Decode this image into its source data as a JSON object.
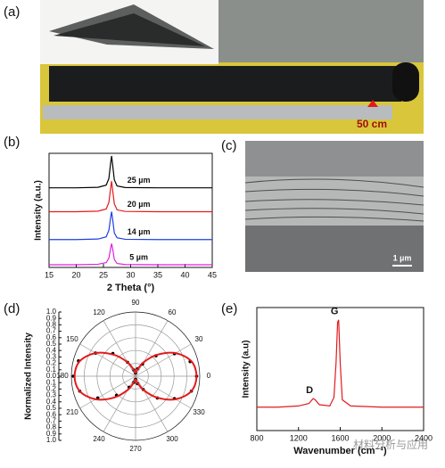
{
  "panel_a": {
    "label": "(a)",
    "annotation": "50 cm"
  },
  "panel_c": {
    "label": "(c)",
    "scale_bar": "1 µm"
  },
  "watermark": "材料分析与应用",
  "chart_data": [
    {
      "type": "line",
      "panel_label": "(b)",
      "xlabel": "2 Theta (°)",
      "ylabel": "Intensity (a.u.)",
      "x": [
        15,
        20,
        24,
        25.5,
        26,
        26.3,
        26.5,
        26.7,
        27,
        27.5,
        29,
        35,
        40,
        45
      ],
      "xlim": [
        15,
        45
      ],
      "xticks": [
        15,
        20,
        25,
        30,
        35,
        40,
        45
      ],
      "ylim": [
        0,
        4.3
      ],
      "series": [
        {
          "name": "25 µm",
          "color": "#000000",
          "values": [
            3.0,
            3.0,
            3.02,
            3.1,
            3.35,
            3.9,
            4.2,
            3.85,
            3.3,
            3.07,
            3.01,
            3.0,
            3.0,
            3.0
          ]
        },
        {
          "name": "20 µm",
          "color": "#e31a1c",
          "values": [
            2.1,
            2.1,
            2.12,
            2.2,
            2.45,
            2.95,
            3.25,
            2.9,
            2.4,
            2.17,
            2.11,
            2.1,
            2.1,
            2.1
          ]
        },
        {
          "name": "14 µm",
          "color": "#1f3fe0",
          "values": [
            1.05,
            1.05,
            1.07,
            1.15,
            1.4,
            1.85,
            2.1,
            1.8,
            1.3,
            1.12,
            1.06,
            1.05,
            1.05,
            1.05
          ]
        },
        {
          "name": "5 µm",
          "color": "#e020e0",
          "values": [
            0.1,
            0.1,
            0.12,
            0.18,
            0.35,
            0.7,
            0.9,
            0.7,
            0.3,
            0.15,
            0.11,
            0.1,
            0.1,
            0.1
          ]
        }
      ]
    },
    {
      "type": "polar",
      "panel_label": "(d)",
      "ylabel": "Normalized Intensity",
      "rlim": [
        0,
        1
      ],
      "rticks": [
        {
          "value": 0,
          "label": "0.0"
        },
        {
          "value": 0.1,
          "label": "0.1"
        },
        {
          "value": 0.2,
          "label": "0.2"
        },
        {
          "value": 0.3,
          "label": "0.3"
        },
        {
          "value": 0.4,
          "label": "0.4"
        },
        {
          "value": 0.5,
          "label": "0.5"
        },
        {
          "value": 0.6,
          "label": "0.6"
        },
        {
          "value": 0.7,
          "label": "0.7"
        },
        {
          "value": 0.8,
          "label": "0.8"
        },
        {
          "value": 0.9,
          "label": "0.9"
        },
        {
          "value": 1,
          "label": "1.0"
        }
      ],
      "theta_ticks": [
        0,
        30,
        60,
        90,
        120,
        150,
        180,
        210,
        240,
        270,
        300,
        330
      ],
      "series": [
        {
          "color": "#000000",
          "marker": "dot",
          "theta": [
            0,
            15,
            30,
            45,
            60,
            75,
            90,
            105,
            120,
            135,
            150,
            165,
            180,
            195,
            210,
            225,
            240,
            255,
            270,
            285,
            300,
            315,
            330,
            345
          ],
          "values": [
            0.95,
            0.88,
            0.7,
            0.45,
            0.22,
            0.12,
            0.05,
            0.1,
            0.25,
            0.5,
            0.72,
            0.92,
            0.97,
            0.9,
            0.68,
            0.42,
            0.2,
            0.1,
            0.05,
            0.12,
            0.24,
            0.48,
            0.7,
            0.9
          ]
        },
        {
          "color": "#e31a1c",
          "marker": "curve",
          "theta": [
            0,
            15,
            30,
            45,
            60,
            75,
            90,
            105,
            120,
            135,
            150,
            165,
            180,
            195,
            210,
            225,
            240,
            255,
            270,
            285,
            300,
            315,
            330,
            345
          ],
          "values": [
            0.95,
            0.9,
            0.72,
            0.47,
            0.25,
            0.1,
            0.05,
            0.1,
            0.25,
            0.47,
            0.72,
            0.9,
            0.95,
            0.9,
            0.72,
            0.47,
            0.25,
            0.1,
            0.05,
            0.1,
            0.25,
            0.47,
            0.72,
            0.9
          ]
        }
      ]
    },
    {
      "type": "line",
      "panel_label": "(e)",
      "xlabel": "Wavenumber (cm⁻¹)",
      "ylabel": "Intensity (a.u)",
      "x": [
        800,
        1000,
        1200,
        1300,
        1340,
        1360,
        1400,
        1500,
        1540,
        1560,
        1575,
        1585,
        1600,
        1620,
        1700,
        2000,
        2400
      ],
      "xlim": [
        800,
        2400
      ],
      "xticks": [
        800,
        1200,
        1600,
        2000,
        2400
      ],
      "ylim": [
        0,
        1
      ],
      "series": [
        {
          "color": "#e31a1c",
          "values": [
            0.19,
            0.19,
            0.2,
            0.22,
            0.26,
            0.25,
            0.21,
            0.2,
            0.27,
            0.55,
            0.88,
            0.9,
            0.55,
            0.25,
            0.2,
            0.19,
            0.19
          ]
        }
      ],
      "annotations": [
        {
          "text": "D",
          "x": 1340,
          "y": 0.26
        },
        {
          "text": "G",
          "x": 1580,
          "y": 0.9
        }
      ]
    }
  ]
}
